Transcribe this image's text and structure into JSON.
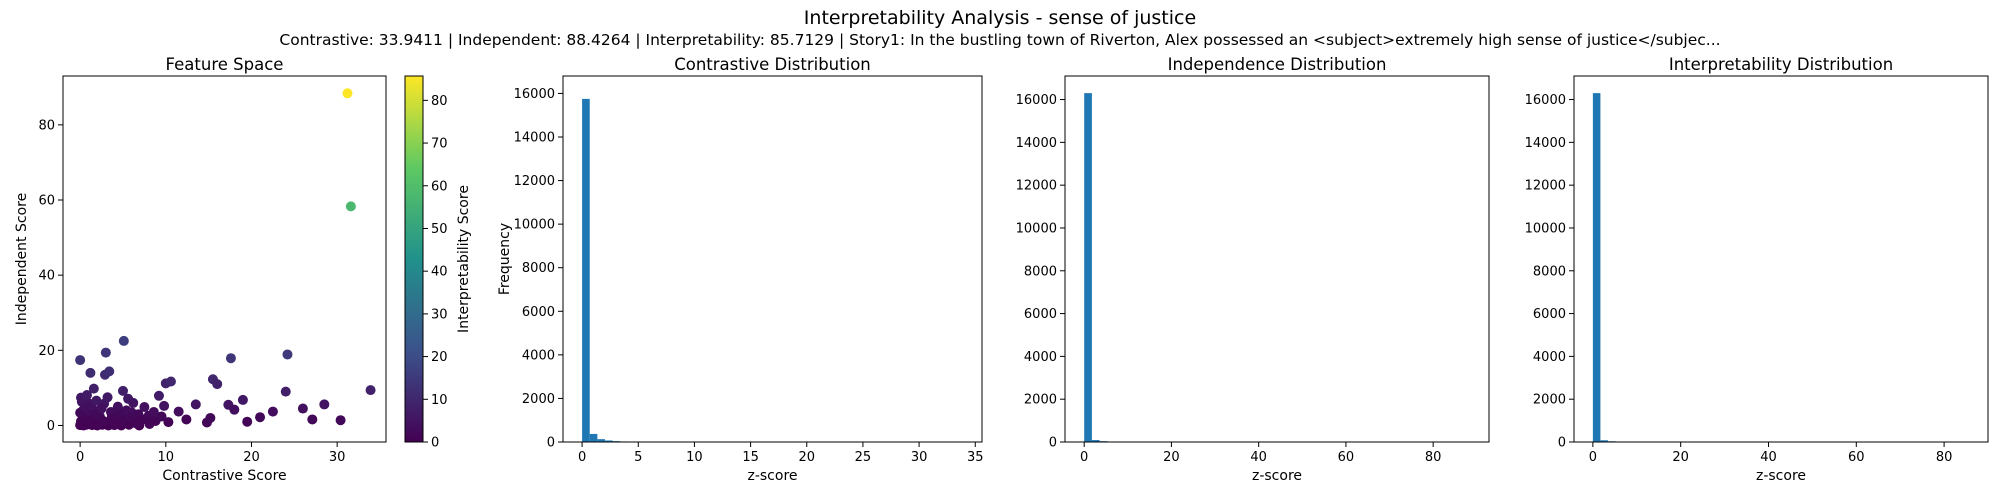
{
  "suptitle": "Interpretability Analysis - sense of justice",
  "subtitle": "Contrastive: 33.9411 | Independent: 88.4264 | Interpretability: 85.7129 | Story1: In the bustling town of Riverton, Alex possessed an <subject>extremely high sense of justice</subjec...",
  "colors": {
    "bar": "#1f77b4",
    "colormap": [
      "#440154",
      "#3b528b",
      "#21918c",
      "#5ec962",
      "#fde725"
    ]
  },
  "chart_data": [
    {
      "type": "scatter",
      "title": "Feature Space",
      "xlabel": "Contrastive Score",
      "ylabel": "Independent Score",
      "xlim": [
        -2,
        35.7
      ],
      "ylim": [
        -4.4,
        93.0
      ],
      "xticks": [
        0,
        10,
        20,
        30
      ],
      "yticks": [
        0,
        20,
        40,
        60,
        80
      ],
      "colorbar": {
        "label": "Interpretability Score",
        "range": [
          0,
          85.7
        ],
        "ticks": [
          0,
          10,
          20,
          30,
          40,
          50,
          60,
          70,
          80
        ]
      },
      "points": [
        {
          "x": 31.2,
          "y": 88.4,
          "c": 85.7
        },
        {
          "x": 31.6,
          "y": 58.3,
          "c": 57.5
        },
        {
          "x": 33.9,
          "y": 9.4,
          "c": 8.5
        },
        {
          "x": 30.4,
          "y": 1.4,
          "c": 2
        },
        {
          "x": 28.5,
          "y": 5.6,
          "c": 5
        },
        {
          "x": 27.1,
          "y": 1.6,
          "c": 2
        },
        {
          "x": 26.0,
          "y": 4.5,
          "c": 4
        },
        {
          "x": 24.2,
          "y": 18.9,
          "c": 15
        },
        {
          "x": 24.0,
          "y": 9.0,
          "c": 8
        },
        {
          "x": 22.5,
          "y": 3.7,
          "c": 3
        },
        {
          "x": 21.0,
          "y": 2.2,
          "c": 2
        },
        {
          "x": 19.5,
          "y": 1.0,
          "c": 1
        },
        {
          "x": 19.0,
          "y": 6.8,
          "c": 6
        },
        {
          "x": 18.0,
          "y": 4.2,
          "c": 4
        },
        {
          "x": 17.6,
          "y": 17.9,
          "c": 14
        },
        {
          "x": 17.3,
          "y": 5.5,
          "c": 5
        },
        {
          "x": 16.0,
          "y": 11.0,
          "c": 9
        },
        {
          "x": 15.5,
          "y": 12.3,
          "c": 10
        },
        {
          "x": 15.2,
          "y": 2.0,
          "c": 2
        },
        {
          "x": 14.8,
          "y": 0.8,
          "c": 1
        },
        {
          "x": 13.5,
          "y": 5.6,
          "c": 5
        },
        {
          "x": 12.4,
          "y": 1.6,
          "c": 1
        },
        {
          "x": 11.5,
          "y": 3.7,
          "c": 3
        },
        {
          "x": 10.6,
          "y": 11.7,
          "c": 10
        },
        {
          "x": 10.3,
          "y": 0.9,
          "c": 1
        },
        {
          "x": 10.0,
          "y": 11.2,
          "c": 9
        },
        {
          "x": 9.8,
          "y": 5.2,
          "c": 5
        },
        {
          "x": 9.5,
          "y": 2.4,
          "c": 2
        },
        {
          "x": 9.2,
          "y": 7.9,
          "c": 7
        },
        {
          "x": 8.8,
          "y": 1.2,
          "c": 1
        },
        {
          "x": 8.6,
          "y": 3.6,
          "c": 3
        },
        {
          "x": 8.1,
          "y": 0.4,
          "c": 1
        },
        {
          "x": 8.0,
          "y": 2.6,
          "c": 2
        },
        {
          "x": 7.5,
          "y": 4.9,
          "c": 4
        },
        {
          "x": 7.2,
          "y": 1.5,
          "c": 1
        },
        {
          "x": 6.8,
          "y": 3.0,
          "c": 2
        },
        {
          "x": 6.5,
          "y": 0.6,
          "c": 1
        },
        {
          "x": 6.2,
          "y": 6.0,
          "c": 5
        },
        {
          "x": 5.9,
          "y": 2.1,
          "c": 2
        },
        {
          "x": 5.6,
          "y": 7.1,
          "c": 6
        },
        {
          "x": 5.4,
          "y": 4.0,
          "c": 3
        },
        {
          "x": 5.1,
          "y": 22.5,
          "c": 16
        },
        {
          "x": 5.0,
          "y": 9.2,
          "c": 8
        },
        {
          "x": 4.9,
          "y": 1.0,
          "c": 1
        },
        {
          "x": 4.6,
          "y": 2.9,
          "c": 2
        },
        {
          "x": 4.4,
          "y": 5.0,
          "c": 4
        },
        {
          "x": 4.1,
          "y": 0.3,
          "c": 1
        },
        {
          "x": 3.9,
          "y": 1.8,
          "c": 1
        },
        {
          "x": 3.6,
          "y": 3.6,
          "c": 3
        },
        {
          "x": 3.4,
          "y": 14.4,
          "c": 12
        },
        {
          "x": 3.2,
          "y": 7.5,
          "c": 6
        },
        {
          "x": 3.0,
          "y": 19.4,
          "c": 14
        },
        {
          "x": 2.9,
          "y": 13.5,
          "c": 11
        },
        {
          "x": 2.7,
          "y": 1.2,
          "c": 1
        },
        {
          "x": 2.5,
          "y": 4.5,
          "c": 4
        },
        {
          "x": 2.3,
          "y": 2.4,
          "c": 2
        },
        {
          "x": 2.1,
          "y": 0.5,
          "c": 0.5
        },
        {
          "x": 1.9,
          "y": 6.6,
          "c": 6
        },
        {
          "x": 1.8,
          "y": 3.1,
          "c": 2
        },
        {
          "x": 1.6,
          "y": 9.8,
          "c": 8
        },
        {
          "x": 1.5,
          "y": 1.6,
          "c": 1
        },
        {
          "x": 1.3,
          "y": 5.4,
          "c": 4
        },
        {
          "x": 1.2,
          "y": 14.0,
          "c": 11
        },
        {
          "x": 1.1,
          "y": 0.8,
          "c": 0.5
        },
        {
          "x": 1.0,
          "y": 3.8,
          "c": 3
        },
        {
          "x": 0.9,
          "y": 2.0,
          "c": 1
        },
        {
          "x": 0.8,
          "y": 8.1,
          "c": 7
        },
        {
          "x": 0.7,
          "y": 0.2,
          "c": 0.3
        },
        {
          "x": 0.6,
          "y": 4.9,
          "c": 4
        },
        {
          "x": 0.5,
          "y": 1.3,
          "c": 1
        },
        {
          "x": 0.4,
          "y": 2.8,
          "c": 2
        },
        {
          "x": 0.3,
          "y": 0.5,
          "c": 0.3
        },
        {
          "x": 0.2,
          "y": 6.3,
          "c": 5
        },
        {
          "x": 0.1,
          "y": 1.1,
          "c": 0.5
        },
        {
          "x": 0.0,
          "y": 17.4,
          "c": 13
        },
        {
          "x": 0.0,
          "y": 3.4,
          "c": 2
        },
        {
          "x": 0.0,
          "y": 0.1,
          "c": 0
        },
        {
          "x": 0.1,
          "y": 7.4,
          "c": 6
        },
        {
          "x": 0.4,
          "y": 0.0,
          "c": 0
        },
        {
          "x": 0.8,
          "y": 0.3,
          "c": 0
        },
        {
          "x": 1.4,
          "y": 0.1,
          "c": 0
        },
        {
          "x": 2.0,
          "y": 0.0,
          "c": 0
        },
        {
          "x": 2.6,
          "y": 0.2,
          "c": 0
        },
        {
          "x": 3.3,
          "y": 0.0,
          "c": 0
        },
        {
          "x": 4.0,
          "y": 0.1,
          "c": 0
        },
        {
          "x": 4.8,
          "y": 0.0,
          "c": 0
        },
        {
          "x": 5.7,
          "y": 0.2,
          "c": 0
        },
        {
          "x": 6.9,
          "y": 0.0,
          "c": 0
        },
        {
          "x": 1.7,
          "y": 1.0,
          "c": 0.5
        },
        {
          "x": 2.4,
          "y": 1.5,
          "c": 1
        },
        {
          "x": 3.1,
          "y": 0.7,
          "c": 0.5
        },
        {
          "x": 3.7,
          "y": 2.3,
          "c": 2
        },
        {
          "x": 4.3,
          "y": 1.4,
          "c": 1
        },
        {
          "x": 5.3,
          "y": 1.8,
          "c": 1
        },
        {
          "x": 6.0,
          "y": 3.5,
          "c": 3
        },
        {
          "x": 7.0,
          "y": 2.0,
          "c": 2
        },
        {
          "x": 0.3,
          "y": 3.9,
          "c": 3
        },
        {
          "x": 1.0,
          "y": 5.9,
          "c": 5
        },
        {
          "x": 2.2,
          "y": 4.0,
          "c": 3
        },
        {
          "x": 2.8,
          "y": 5.8,
          "c": 5
        },
        {
          "x": 3.5,
          "y": 1.0,
          "c": 1
        },
        {
          "x": 4.5,
          "y": 3.3,
          "c": 3
        }
      ]
    },
    {
      "type": "bar",
      "title": "Contrastive Distribution",
      "xlabel": "z-score",
      "ylabel": "Frequency",
      "xlim": [
        -1.7,
        35.6
      ],
      "ylim": [
        0,
        16800
      ],
      "xticks": [
        0,
        5,
        10,
        15,
        20,
        25,
        30,
        35
      ],
      "yticks": [
        0,
        2000,
        4000,
        6000,
        8000,
        10000,
        12000,
        14000,
        16000
      ],
      "bin_start": 0,
      "bin_width": 0.679,
      "counts": [
        15750,
        370,
        130,
        70,
        40,
        25,
        15,
        10,
        8,
        6,
        5,
        4,
        4,
        3,
        3,
        2,
        2,
        2,
        2,
        1,
        1,
        1,
        1,
        1,
        1,
        1,
        1,
        1,
        1,
        1,
        1,
        1,
        1,
        1,
        1,
        1,
        1,
        1,
        1,
        1,
        1,
        1,
        1,
        1,
        1,
        1,
        2,
        1,
        1,
        1
      ]
    },
    {
      "type": "bar",
      "title": "Independence Distribution",
      "xlabel": "z-score",
      "ylabel": "",
      "xlim": [
        -4.4,
        92.8
      ],
      "ylim": [
        0,
        17100
      ],
      "xticks": [
        0,
        20,
        40,
        60,
        80
      ],
      "yticks": [
        0,
        2000,
        4000,
        6000,
        8000,
        10000,
        12000,
        14000,
        16000
      ],
      "bin_start": 0,
      "bin_width": 1.768,
      "counts": [
        16300,
        90,
        40,
        20,
        12,
        8,
        5,
        4,
        3,
        2,
        2,
        1,
        1,
        1,
        1,
        1,
        1,
        1,
        1,
        1,
        1,
        1,
        1,
        1,
        1,
        1,
        1,
        1,
        1,
        1,
        1,
        1,
        1,
        1,
        1,
        1,
        1,
        1,
        1,
        1,
        1,
        1,
        1,
        1,
        1,
        1,
        1,
        1,
        1,
        1
      ]
    },
    {
      "type": "bar",
      "title": "Interpretability Distribution",
      "xlabel": "z-score",
      "ylabel": "",
      "xlim": [
        -4.3,
        90.0
      ],
      "ylim": [
        0,
        17100
      ],
      "xticks": [
        0,
        20,
        40,
        60,
        80
      ],
      "yticks": [
        0,
        2000,
        4000,
        6000,
        8000,
        10000,
        12000,
        14000,
        16000
      ],
      "bin_start": 0,
      "bin_width": 1.714,
      "counts": [
        16300,
        80,
        35,
        18,
        10,
        7,
        5,
        4,
        3,
        2,
        2,
        1,
        1,
        1,
        1,
        1,
        1,
        1,
        1,
        1,
        1,
        1,
        1,
        1,
        1,
        1,
        1,
        1,
        1,
        1,
        1,
        1,
        1,
        1,
        1,
        1,
        1,
        1,
        1,
        1,
        1,
        1,
        1,
        1,
        1,
        1,
        1,
        1,
        1,
        1
      ]
    }
  ]
}
